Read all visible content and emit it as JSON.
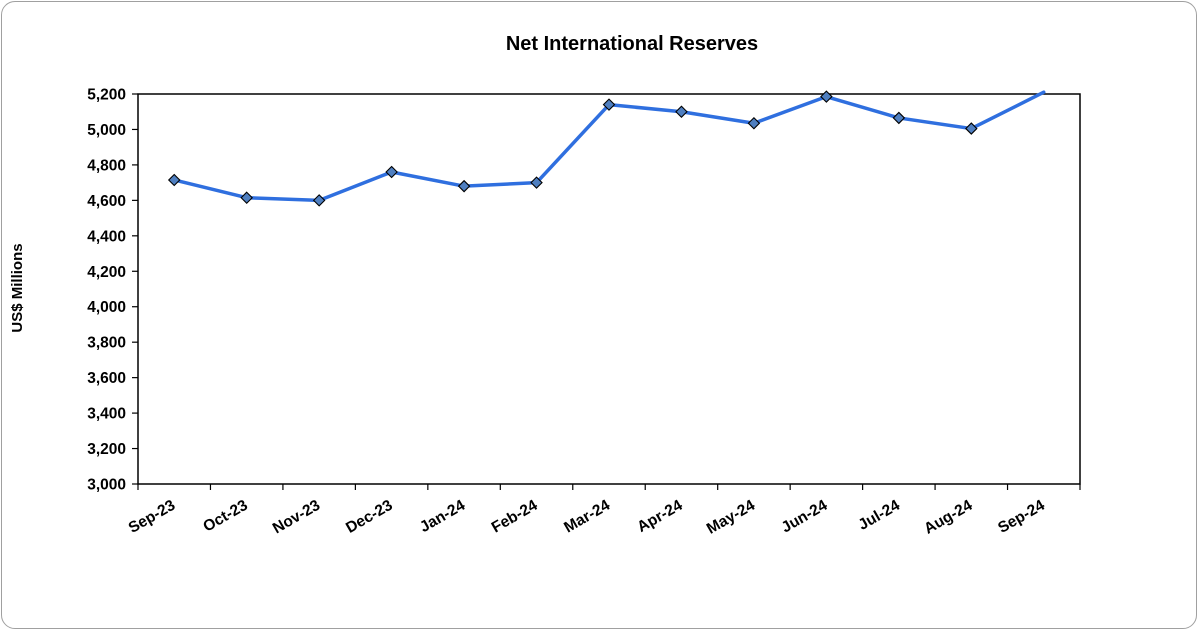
{
  "chart_data": {
    "type": "line",
    "title": "Net International Reserves",
    "xlabel": "",
    "ylabel": "US$ Millions",
    "categories": [
      "Sep-23",
      "Oct-23",
      "Nov-23",
      "Dec-23",
      "Jan-24",
      "Feb-24",
      "Mar-24",
      "Apr-24",
      "May-24",
      "Jun-24",
      "Jul-24",
      "Aug-24",
      "Sep-24"
    ],
    "series": [
      {
        "values": [
          4715,
          4615,
          4600,
          4760,
          4680,
          4700,
          5140,
          5100,
          5035,
          5185,
          5065,
          5005,
          5210
        ],
        "color": "#2f6fdf",
        "marker": "diamond",
        "marker_color": "#4f7fc0"
      }
    ],
    "ylim": [
      3000,
      5200
    ],
    "yticks": [
      3000,
      3200,
      3400,
      3600,
      3800,
      4000,
      4200,
      4400,
      4600,
      4800,
      5000,
      5200
    ],
    "ytick_labels": [
      "3,000",
      "3,200",
      "3,400",
      "3,600",
      "3,800",
      "4,000",
      "4,200",
      "4,400",
      "4,600",
      "4,800",
      "5,000",
      "5,200"
    ],
    "grid": false,
    "legend": "none"
  }
}
